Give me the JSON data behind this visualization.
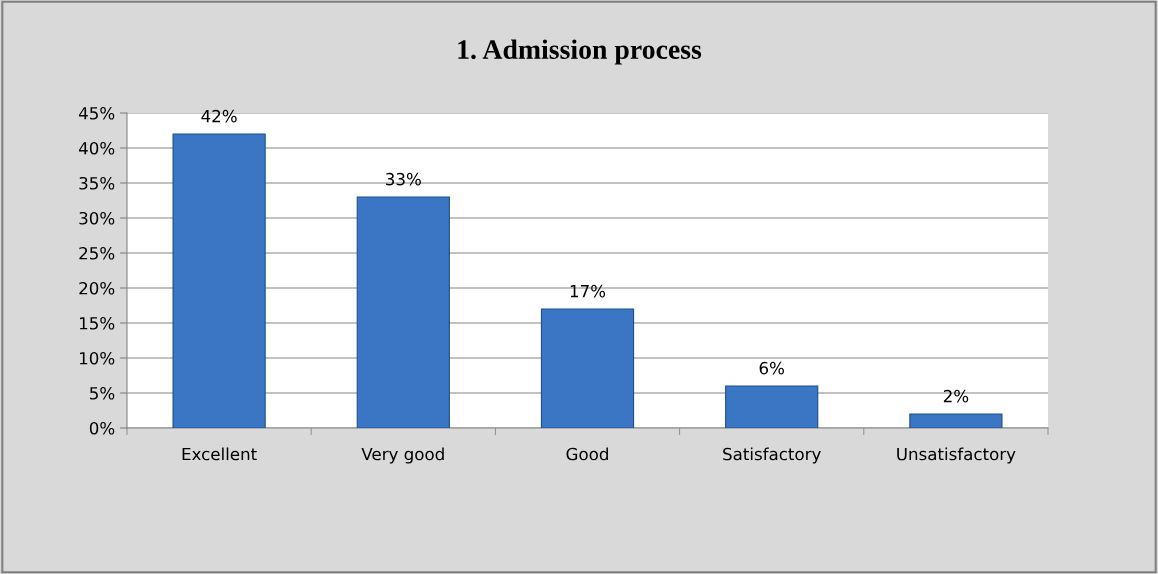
{
  "chart_data": {
    "type": "bar",
    "title": "1. Admission process",
    "categories": [
      "Excellent",
      "Very good",
      "Good",
      "Satisfactory",
      "Unsatisfactory"
    ],
    "values": [
      42,
      33,
      17,
      6,
      2
    ],
    "value_labels": [
      "42%",
      "33%",
      "17%",
      "6%",
      "2%"
    ],
    "color": "#3a76c4",
    "ylim": [
      0,
      45
    ],
    "yticks": [
      {
        "value": 0,
        "label": "0%"
      },
      {
        "value": 5,
        "label": "5%"
      },
      {
        "value": 10,
        "label": "10%"
      },
      {
        "value": 15,
        "label": "15%"
      },
      {
        "value": 20,
        "label": "20%"
      },
      {
        "value": 25,
        "label": "25%"
      },
      {
        "value": 30,
        "label": "30%"
      },
      {
        "value": 35,
        "label": "35%"
      },
      {
        "value": 40,
        "label": "40%"
      },
      {
        "value": 45,
        "label": "45%"
      }
    ],
    "grid": "y",
    "legend": false
  }
}
